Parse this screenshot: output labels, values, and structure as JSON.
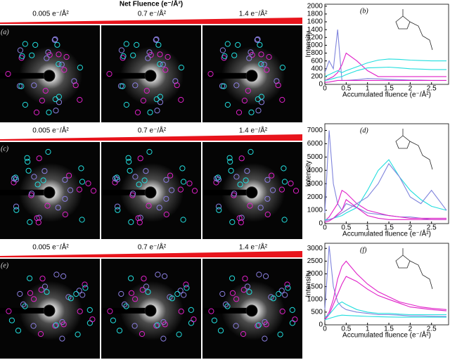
{
  "header": {
    "title": "Net Fluence (e⁻/Å²)"
  },
  "images": [
    {
      "label": "(a)",
      "fluences": [
        "0.005 e⁻/Å²",
        "0.7 e⁻/Å²",
        "1.4 e⁻/Å²"
      ]
    },
    {
      "label": "(c)",
      "fluences": [
        "0.005 e⁻/Å²",
        "0.7 e⁻/Å²",
        "1.4 e⁻/Å²"
      ]
    },
    {
      "label": "(e)",
      "fluences": [
        "0.005 e⁻/Å²",
        "0.7 e⁻/Å²",
        "1.4 e⁻/Å²"
      ]
    }
  ],
  "chart_data": [
    {
      "type": "line",
      "label": "(b)",
      "y_label": "Intensity",
      "x_label": "Accumulated fluence (e⁻/Å²)",
      "x": [
        0,
        0.1,
        0.2,
        0.3,
        0.4,
        0.5,
        0.75,
        1,
        1.25,
        1.5,
        1.75,
        2,
        2.25,
        2.5,
        2.85
      ],
      "xlim": [
        0,
        2.9
      ],
      "xticks": [
        0,
        0.5,
        1,
        1.5,
        2,
        2.5
      ],
      "ylim": [
        0,
        2050
      ],
      "yticks": [
        0,
        200,
        400,
        600,
        800,
        1000,
        1200,
        1400,
        1600,
        1800,
        2000
      ],
      "series": [
        {
          "color": "#7f84dc",
          "values": [
            300,
            600,
            400,
            1400,
            100,
            100,
            120,
            150,
            140,
            130,
            120,
            110,
            110,
            100,
            100
          ]
        },
        {
          "color": "#e020c8",
          "values": [
            100,
            150,
            200,
            300,
            500,
            800,
            600,
            350,
            200,
            200,
            200,
            200,
            200,
            200,
            200
          ]
        },
        {
          "color": "#22dede",
          "values": [
            200,
            250,
            300,
            350,
            300,
            350,
            450,
            550,
            620,
            650,
            640,
            620,
            610,
            600,
            600
          ]
        },
        {
          "color": "#22dede",
          "values": [
            100,
            120,
            150,
            180,
            200,
            250,
            350,
            420,
            430,
            440,
            420,
            400,
            390,
            380,
            380
          ]
        },
        {
          "color": "#e020c8",
          "values": [
            50,
            60,
            80,
            100,
            100,
            100,
            100,
            100,
            100,
            100,
            100,
            100,
            100,
            100,
            100
          ]
        }
      ]
    },
    {
      "type": "line",
      "label": "(d)",
      "y_label": "Intensity",
      "x_label": "Accumulated fluence (e⁻/Å²)",
      "x": [
        0,
        0.1,
        0.2,
        0.3,
        0.4,
        0.5,
        0.75,
        1,
        1.25,
        1.5,
        1.75,
        2,
        2.25,
        2.5,
        2.85
      ],
      "xlim": [
        0,
        2.9
      ],
      "xticks": [
        0,
        0.5,
        1,
        1.5,
        2,
        2.5
      ],
      "ylim": [
        0,
        7500
      ],
      "yticks": [
        0,
        1000,
        2000,
        3000,
        4000,
        5000,
        6000,
        7000
      ],
      "series": [
        {
          "color": "#7f84dc",
          "values": [
            800,
            7000,
            3000,
            1500,
            1000,
            1500,
            1200,
            800,
            700,
            600,
            500,
            500,
            400,
            300,
            300
          ]
        },
        {
          "color": "#e020c8",
          "values": [
            200,
            500,
            1000,
            1500,
            2500,
            2300,
            1500,
            1000,
            800,
            600,
            500,
            400,
            400,
            400,
            400
          ]
        },
        {
          "color": "#22dede",
          "values": [
            300,
            300,
            400,
            500,
            600,
            800,
            1200,
            2500,
            4000,
            4800,
            3500,
            2500,
            1800,
            1300,
            1000
          ]
        },
        {
          "color": "#7f84dc",
          "values": [
            200,
            300,
            400,
            600,
            800,
            1000,
            1500,
            2000,
            3000,
            4500,
            3500,
            2000,
            1500,
            2500,
            1000
          ]
        },
        {
          "color": "#e020c8",
          "values": [
            100,
            200,
            400,
            700,
            1000,
            1800,
            1200,
            600,
            400,
            300,
            300,
            300,
            300,
            300,
            300
          ]
        }
      ]
    },
    {
      "type": "line",
      "label": "(f)",
      "y_label": "Intensity",
      "x_label": "Accumulated fluence (e⁻/Å²)",
      "x": [
        0,
        0.1,
        0.2,
        0.3,
        0.4,
        0.5,
        0.75,
        1,
        1.25,
        1.5,
        1.75,
        2,
        2.25,
        2.5,
        2.85
      ],
      "xlim": [
        0,
        2.9
      ],
      "xticks": [
        0,
        0.5,
        1,
        1.5,
        2,
        2.5
      ],
      "ylim": [
        0,
        3200
      ],
      "yticks": [
        0,
        500,
        1000,
        1500,
        2000,
        2500,
        3000
      ],
      "series": [
        {
          "color": "#7f84dc",
          "values": [
            600,
            3100,
            1500,
            900,
            700,
            600,
            500,
            450,
            400,
            400,
            380,
            350,
            350,
            340,
            330
          ]
        },
        {
          "color": "#e020c8",
          "values": [
            200,
            500,
            1000,
            1800,
            2300,
            2500,
            2000,
            1600,
            1300,
            1100,
            900,
            800,
            700,
            650,
            600
          ]
        },
        {
          "color": "#e020c8",
          "values": [
            200,
            400,
            800,
            1200,
            1600,
            1900,
            1700,
            1400,
            1150,
            1000,
            850,
            700,
            650,
            600,
            550
          ]
        },
        {
          "color": "#22dede",
          "values": [
            300,
            400,
            600,
            800,
            900,
            800,
            600,
            500,
            450,
            450,
            420,
            400,
            400,
            400,
            400
          ]
        },
        {
          "color": "#22dede",
          "values": [
            200,
            250,
            300,
            350,
            380,
            370,
            350,
            330,
            320,
            310,
            300,
            300,
            300,
            300,
            300
          ]
        }
      ]
    }
  ]
}
